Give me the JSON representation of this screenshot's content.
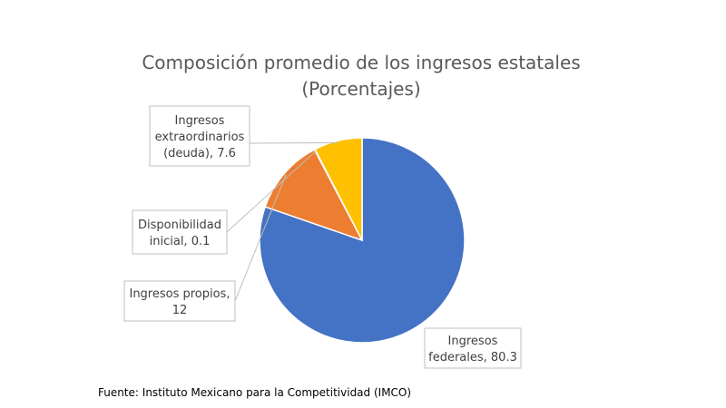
{
  "chart_data": {
    "type": "pie",
    "title": "Composición promedio de los ingresos estatales",
    "subtitle": "(Porcentajes)",
    "slices": [
      {
        "name": "Ingresos federales",
        "value": 80.3,
        "color": "#4472C4",
        "label_lines": [
          "Ingresos",
          "federales, 80.3"
        ]
      },
      {
        "name": "Ingresos propios",
        "value": 12,
        "color": "#ED7D31",
        "label_lines": [
          "Ingresos propios,",
          "12"
        ]
      },
      {
        "name": "Disponibilidad inicial",
        "value": 0.1,
        "color": "#A5A5A5",
        "label_lines": [
          "Disponibilidad",
          "inicial, 0.1"
        ]
      },
      {
        "name": "Ingresos extraordinarios (deuda)",
        "value": 7.6,
        "color": "#FFC000",
        "label_lines": [
          "Ingresos",
          "extraordinarios",
          "(deuda), 7.6"
        ]
      }
    ],
    "legend": "none",
    "source": "Fuente: Instituto Mexicano para la Competitividad (IMCO)"
  }
}
